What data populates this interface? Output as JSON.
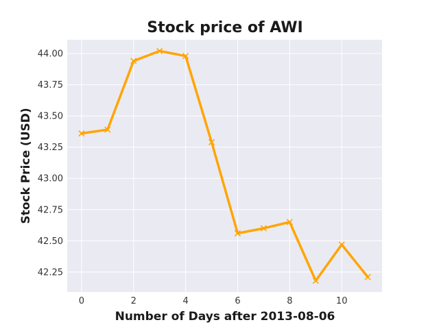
{
  "chart_data": {
    "type": "line",
    "title": "Stock price of AWI",
    "xlabel": "Number of Days after 2013-08-06",
    "ylabel": "Stock Price (USD)",
    "x": [
      0,
      1,
      2,
      3,
      4,
      5,
      6,
      7,
      8,
      9,
      10,
      11
    ],
    "series": [
      {
        "values": [
          43.36,
          43.39,
          43.94,
          44.02,
          43.98,
          43.29,
          42.56,
          42.6,
          42.65,
          42.18,
          42.47,
          42.21
        ],
        "color": "#FFA500",
        "marker": "x"
      }
    ],
    "xlim": [
      -0.55,
      11.55
    ],
    "ylim": [
      42.09,
      44.11
    ],
    "xticks": [
      0,
      2,
      4,
      6,
      8,
      10
    ],
    "xtick_labels": [
      "0",
      "2",
      "4",
      "6",
      "8",
      "10"
    ],
    "yticks": [
      42.25,
      42.5,
      42.75,
      43.0,
      43.25,
      43.5,
      43.75,
      44.0
    ],
    "ytick_labels": [
      "42.25",
      "42.50",
      "42.75",
      "43.00",
      "43.25",
      "43.50",
      "43.75",
      "44.00"
    ],
    "grid": true,
    "background_color": "#EAEAF2",
    "grid_color": "#FFFFFF"
  }
}
